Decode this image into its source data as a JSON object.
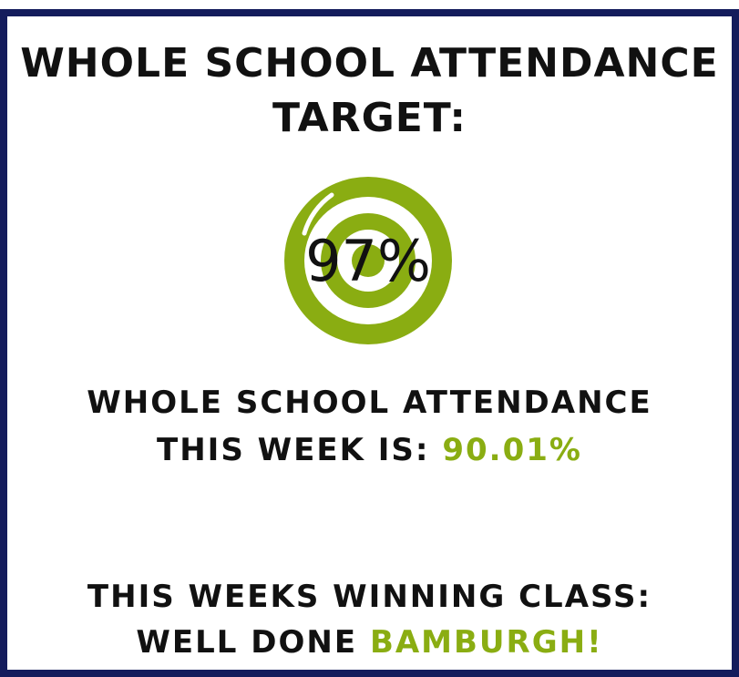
{
  "title_line1": "WHOLE SCHOOL ATTENDANCE",
  "title_line2": "TARGET:",
  "target": "97%",
  "week_line1": "WHOLE SCHOOL ATTENDANCE",
  "week_line2_prefix": "THIS WEEK IS:",
  "week_value": "90.01%",
  "winner_line1": "THIS WEEKS WINNING CLASS:",
  "winner_prefix": "WELL DONE",
  "winner_class": "BAMBURGH!"
}
